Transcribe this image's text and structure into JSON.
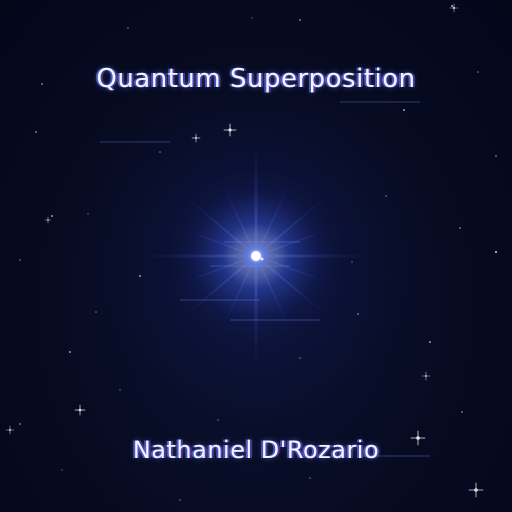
{
  "cover": {
    "title": "Quantum Superposition",
    "artist": "Nathaniel D'Rozario"
  },
  "colors": {
    "background": "#05081a",
    "star_core": "#ffffff",
    "star_glow": "#3a5cff",
    "text": "#f2f4ff",
    "glitch_accent": "#5a78ff"
  },
  "icons": {
    "central_star": "bright-star-icon"
  }
}
